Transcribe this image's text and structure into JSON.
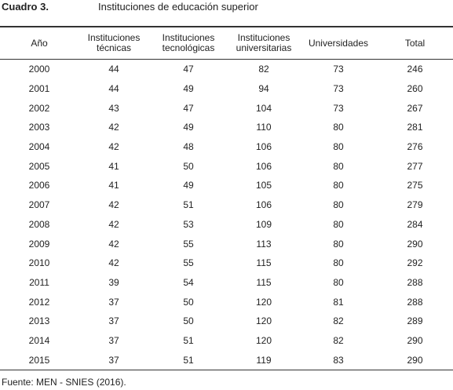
{
  "header": {
    "label": "Cuadro 3.",
    "title": "Instituciones de educación superior"
  },
  "table": {
    "columns": [
      "Año",
      "Instituciones técnicas",
      "Instituciones tecnológicas",
      "Instituciones universitarias",
      "Universidades",
      "Total"
    ],
    "rows": [
      [
        2000,
        44,
        47,
        82,
        73,
        246
      ],
      [
        2001,
        44,
        49,
        94,
        73,
        260
      ],
      [
        2002,
        43,
        47,
        104,
        73,
        267
      ],
      [
        2003,
        42,
        49,
        110,
        80,
        281
      ],
      [
        2004,
        42,
        48,
        106,
        80,
        276
      ],
      [
        2005,
        41,
        50,
        106,
        80,
        277
      ],
      [
        2006,
        41,
        49,
        105,
        80,
        275
      ],
      [
        2007,
        42,
        51,
        106,
        80,
        279
      ],
      [
        2008,
        42,
        53,
        109,
        80,
        284
      ],
      [
        2009,
        42,
        55,
        113,
        80,
        290
      ],
      [
        2010,
        42,
        55,
        115,
        80,
        292
      ],
      [
        2011,
        39,
        54,
        115,
        80,
        288
      ],
      [
        2012,
        37,
        50,
        120,
        81,
        288
      ],
      [
        2013,
        37,
        50,
        120,
        82,
        289
      ],
      [
        2014,
        37,
        51,
        120,
        82,
        290
      ],
      [
        2015,
        37,
        51,
        119,
        83,
        290
      ]
    ]
  },
  "source": "Fuente: MEN - SNIES (2016)."
}
